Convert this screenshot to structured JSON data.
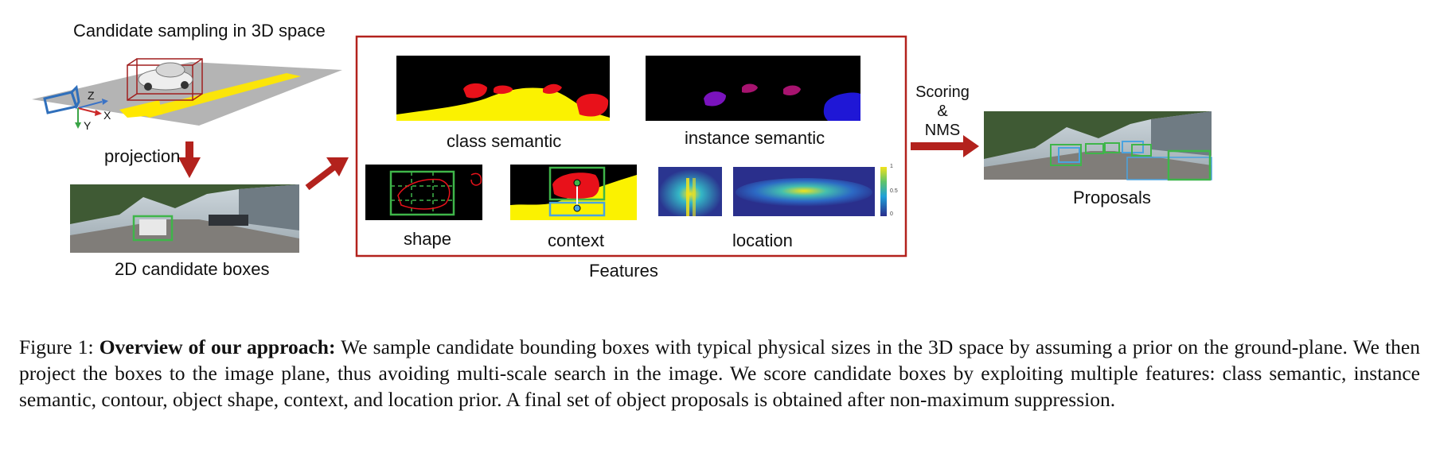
{
  "labels": {
    "sampling": "Candidate sampling in 3D space",
    "projection": "projection",
    "candidate_boxes": "2D candidate boxes",
    "class_semantic": "class semantic",
    "instance_semantic": "instance semantic",
    "shape": "shape",
    "context": "context",
    "location": "location",
    "features": "Features",
    "scoring_line1": "Scoring",
    "scoring_line2": "&",
    "scoring_line3": "NMS",
    "proposals": "Proposals"
  },
  "axes": {
    "z": "Z",
    "x": "X",
    "y": "Y"
  },
  "colorbar": {
    "top": "1",
    "mid": "0.5",
    "bottom": "0"
  },
  "caption": {
    "prefix": "Figure 1: ",
    "bold": "Overview of our approach:",
    "text": " We sample candidate bounding boxes with typical physical sizes in the 3D space by assuming a prior on the ground-plane. We then project the boxes to the image plane, thus avoiding multi-scale search in the image. We score candidate boxes by exploiting multiple features: class semantic, instance semantic, contour, object shape, context, and location prior. A final set of object proposals is obtained after non-maximum suppression."
  },
  "colors": {
    "arrow": "#b3221d",
    "frame": "#b3221d",
    "box_green": "#3fb54a",
    "box_blue": "#4aa3df",
    "semantic_red": "#e8111a",
    "semantic_yellow": "#fbf200",
    "instance_blue": "#1f17d6",
    "instance_purple": "#7a13bd"
  }
}
